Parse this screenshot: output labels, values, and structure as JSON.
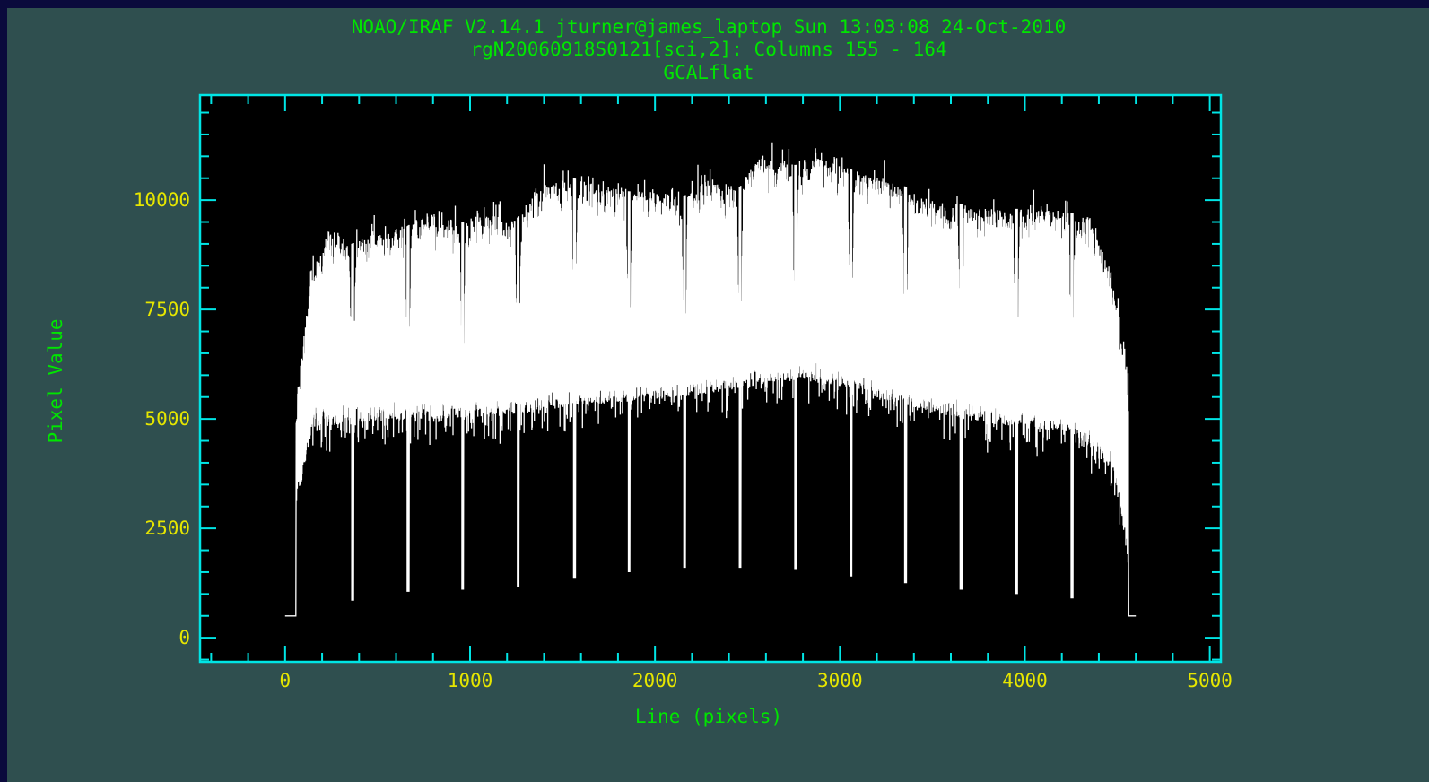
{
  "colors": {
    "background": "#2f4f4f",
    "outer_border": "#0a0a3c",
    "plot_area": "#000000",
    "axes": "#00e5e5",
    "title_text": "#00e600",
    "tick_labels": "#e6e600",
    "data": "#ffffff"
  },
  "chart_data": {
    "type": "line",
    "title_lines": [
      "NOAO/IRAF V2.14.1 jturner@james_laptop Sun 13:03:08 24-Oct-2010",
      "rgN20060918S0121[sci,2]: Columns 155 - 164",
      "GCALflat"
    ],
    "xlabel": "Line (pixels)",
    "ylabel": "Pixel Value",
    "xlim": [
      -460,
      5060
    ],
    "ylim": [
      -550,
      12400
    ],
    "xticks": [
      0,
      1000,
      2000,
      3000,
      4000,
      5000
    ],
    "yticks": [
      0,
      2500,
      5000,
      7500,
      10000
    ],
    "x_minor_step": 200,
    "y_minor_step": 500,
    "grid": false,
    "legend": "none",
    "series": [
      {
        "data_range_x": [
          0,
          4600
        ],
        "gaps_x": [
          365,
          665,
          960,
          1260,
          1565,
          1860,
          2160,
          2460,
          2760,
          3060,
          3355,
          3655,
          3955,
          4255
        ],
        "gap_minima": [
          850,
          1050,
          1100,
          1150,
          1350,
          1500,
          1600,
          1600,
          1550,
          1400,
          1250,
          1100,
          1000,
          900
        ],
        "upper_envelope": [
          [
            60,
            5500
          ],
          [
            150,
            8500
          ],
          [
            250,
            9300
          ],
          [
            360,
            9000
          ],
          [
            460,
            9200
          ],
          [
            660,
            9400
          ],
          [
            760,
            9700
          ],
          [
            960,
            9500
          ],
          [
            1060,
            9700
          ],
          [
            1260,
            9600
          ],
          [
            1360,
            10300
          ],
          [
            1560,
            10500
          ],
          [
            1660,
            10400
          ],
          [
            1860,
            10200
          ],
          [
            1960,
            10200
          ],
          [
            2160,
            10100
          ],
          [
            2260,
            10500
          ],
          [
            2460,
            10300
          ],
          [
            2560,
            11000
          ],
          [
            2760,
            10800
          ],
          [
            2860,
            11000
          ],
          [
            3060,
            10700
          ],
          [
            3160,
            10600
          ],
          [
            3360,
            10300
          ],
          [
            3460,
            10000
          ],
          [
            3660,
            9900
          ],
          [
            3760,
            9800
          ],
          [
            3960,
            9800
          ],
          [
            4060,
            9800
          ],
          [
            4260,
            9700
          ],
          [
            4360,
            9600
          ],
          [
            4480,
            8200
          ],
          [
            4550,
            6000
          ]
        ],
        "lower_envelope": [
          [
            60,
            3000
          ],
          [
            150,
            4800
          ],
          [
            360,
            4900
          ],
          [
            660,
            5000
          ],
          [
            960,
            5000
          ],
          [
            1260,
            5100
          ],
          [
            1560,
            5300
          ],
          [
            1860,
            5400
          ],
          [
            2160,
            5500
          ],
          [
            2460,
            5700
          ],
          [
            2760,
            5900
          ],
          [
            3060,
            5700
          ],
          [
            3360,
            5300
          ],
          [
            3660,
            5000
          ],
          [
            3960,
            4800
          ],
          [
            4260,
            4700
          ],
          [
            4480,
            3800
          ],
          [
            4550,
            2200
          ]
        ],
        "baseline": 500
      }
    ]
  }
}
